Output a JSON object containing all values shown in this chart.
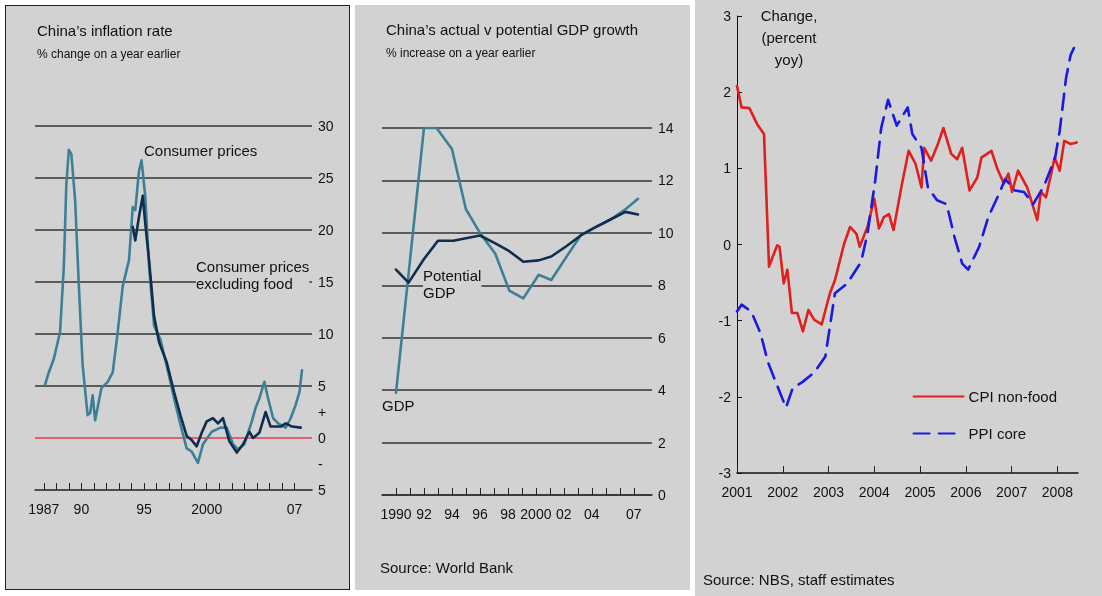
{
  "chart_data": [
    {
      "type": "line",
      "title": "China’s inflation rate",
      "subtitle": "% change on a year earlier",
      "marker": "none",
      "grid": "y",
      "legend": false,
      "xlim": [
        1986.3,
        2008.4
      ],
      "xticks": [
        {
          "value": 1987,
          "label": "1987"
        },
        {
          "value": 1988,
          "label": null
        },
        {
          "value": 1989,
          "label": null
        },
        {
          "value": 1990,
          "label": "90"
        },
        {
          "value": 1991,
          "label": null
        },
        {
          "value": 1992,
          "label": null
        },
        {
          "value": 1993,
          "label": null
        },
        {
          "value": 1994,
          "label": null
        },
        {
          "value": 1995,
          "label": "95"
        },
        {
          "value": 1996,
          "label": null
        },
        {
          "value": 1997,
          "label": null
        },
        {
          "value": 1998,
          "label": null
        },
        {
          "value": 1999,
          "label": null
        },
        {
          "value": 2000,
          "label": "2000"
        },
        {
          "value": 2001,
          "label": null
        },
        {
          "value": 2002,
          "label": null
        },
        {
          "value": 2003,
          "label": null
        },
        {
          "value": 2004,
          "label": null
        },
        {
          "value": 2005,
          "label": null
        },
        {
          "value": 2006,
          "label": null
        },
        {
          "value": 2007,
          "label": "07"
        }
      ],
      "ylim": [
        -5,
        30
      ],
      "yticks": [
        {
          "value": -5,
          "label": "5"
        },
        {
          "value": -2.5,
          "label": "-"
        },
        0,
        {
          "value": 2.5,
          "label": "+"
        },
        5,
        10,
        15,
        20,
        25,
        30
      ],
      "ref_lines": [
        {
          "axis": "y",
          "value": 0,
          "color": "#e0606e"
        }
      ],
      "annotations": [
        "Consumer prices",
        "Consumer prices\nexcluding food"
      ],
      "series": [
        {
          "color": "#3d8096",
          "x": [
            1987.1,
            1987.4,
            1987.8,
            1988.3,
            1988.6,
            1988.8,
            1989.0,
            1989.2,
            1989.5,
            1989.8,
            1990.1,
            1990.5,
            1990.7,
            1990.9,
            1991.1,
            1991.6,
            1992.1,
            1992.5,
            1992.9,
            1993.3,
            1993.8,
            1994.1,
            1994.3,
            1994.6,
            1994.8,
            1995.1,
            1995.4,
            1995.8,
            1996.3,
            1996.8,
            1997.4,
            1997.9,
            1998.4,
            1998.8,
            1999.3,
            1999.7,
            2000.4,
            2001.1,
            2001.6,
            2002.1,
            2002.5,
            2003.0,
            2003.6,
            2003.9,
            2004.2,
            2004.6,
            2004.9,
            2005.3,
            2005.7,
            2006.3,
            2006.7,
            2007.1,
            2007.4,
            2007.6
          ],
          "values": [
            5.1,
            6.3,
            7.6,
            10.2,
            16.5,
            24.4,
            27.7,
            27.3,
            22.9,
            14.6,
            7.0,
            2.2,
            2.4,
            4.1,
            1.7,
            4.8,
            5.4,
            6.3,
            10.2,
            14.6,
            17.1,
            22.2,
            21.9,
            25.7,
            26.7,
            23.2,
            16.5,
            10.8,
            9.5,
            7.0,
            3.8,
            1.3,
            -1.0,
            -1.3,
            -2.4,
            -0.6,
            0.6,
            1.0,
            1.0,
            -0.6,
            -1.1,
            -0.6,
            1.6,
            2.9,
            3.8,
            5.4,
            3.8,
            1.9,
            1.4,
            1.0,
            1.9,
            3.2,
            4.4,
            6.5
          ]
        },
        {
          "color": "#0f2d4f",
          "x": [
            1994.1,
            1994.3,
            1994.6,
            1994.9,
            1995.1,
            1995.4,
            1995.8,
            1996.2,
            1996.8,
            1997.4,
            1997.9,
            1998.4,
            1998.8,
            1999.2,
            1999.6,
            2000.0,
            2000.5,
            2000.9,
            2001.3,
            2001.8,
            2002.4,
            2002.9,
            2003.4,
            2003.7,
            2004.2,
            2004.7,
            2005.1,
            2005.9,
            2006.3,
            2006.8,
            2007.5
          ],
          "values": [
            20.3,
            19.0,
            21.3,
            23.3,
            20.6,
            17.1,
            11.7,
            9.2,
            7.3,
            4.4,
            2.2,
            0.2,
            -0.2,
            -0.8,
            0.5,
            1.6,
            1.9,
            1.4,
            1.9,
            -0.3,
            -1.4,
            -0.6,
            0.6,
            0,
            0.5,
            2.5,
            1.1,
            1.1,
            1.4,
            1.1,
            1.0
          ]
        }
      ]
    },
    {
      "type": "line",
      "title": "China’s actual v potential GDP growth",
      "subtitle": "% increase on a year earlier",
      "marker": "none",
      "grid": "y",
      "legend": false,
      "xlim": [
        1989,
        2008.3
      ],
      "xticks": [
        {
          "value": 1990,
          "label": "1990"
        },
        {
          "value": 1991,
          "label": null
        },
        {
          "value": 1992,
          "label": "92"
        },
        {
          "value": 1993,
          "label": null
        },
        {
          "value": 1994,
          "label": "94"
        },
        {
          "value": 1995,
          "label": null
        },
        {
          "value": 1996,
          "label": "96"
        },
        {
          "value": 1997,
          "label": null
        },
        {
          "value": 1998,
          "label": "98"
        },
        {
          "value": 1999,
          "label": null
        },
        {
          "value": 2000,
          "label": "2000"
        },
        {
          "value": 2001,
          "label": null
        },
        {
          "value": 2002,
          "label": "02"
        },
        {
          "value": 2003,
          "label": null
        },
        {
          "value": 2004,
          "label": "04"
        },
        {
          "value": 2005,
          "label": null
        },
        {
          "value": 2006,
          "label": null
        },
        {
          "value": 2007,
          "label": "07"
        }
      ],
      "ylim": [
        0,
        14
      ],
      "yticks": [
        0,
        2,
        4,
        6,
        8,
        10,
        12,
        14
      ],
      "annotations": [
        "Potential\nGDP",
        "GDP",
        "Source: World Bank"
      ],
      "series": [
        {
          "color": "#3d8096",
          "x": [
            1990,
            1992.0,
            1992.9,
            1994.0,
            1995.0,
            1996.0,
            1997.1,
            1998.1,
            1999.1,
            2000.2,
            2001.1,
            2002.2,
            2003.2,
            2004.2,
            2005.3,
            2006.4,
            2007.3
          ],
          "values": [
            3.9,
            14.0,
            14.0,
            13.2,
            10.9,
            10.0,
            9.2,
            7.8,
            7.5,
            8.4,
            8.2,
            9.1,
            9.9,
            10.2,
            10.5,
            10.9,
            11.3
          ]
        },
        {
          "color": "#0f2d4f",
          "x": [
            1990,
            1990.9,
            1992.0,
            1993.0,
            1994.1,
            1996.0,
            1997.1,
            1998.1,
            1999.1,
            2000.2,
            2001.1,
            2002.2,
            2003.2,
            2004.2,
            2005.3,
            2006.4,
            2007.3
          ],
          "values": [
            8.6,
            8.1,
            9.0,
            9.7,
            9.7,
            9.9,
            9.6,
            9.3,
            8.9,
            8.95,
            9.1,
            9.5,
            9.9,
            10.2,
            10.5,
            10.8,
            10.7
          ]
        }
      ]
    },
    {
      "type": "line",
      "ylabel": "Change,\n(percent\nyoy)",
      "marker": "none",
      "grid": false,
      "legend": "bottom right",
      "xlim": [
        2001,
        2008.45
      ],
      "xticks": [
        {
          "value": 2001,
          "label": "2001"
        },
        {
          "value": 2002,
          "label": "2002"
        },
        {
          "value": 2003,
          "label": "2003"
        },
        {
          "value": 2004,
          "label": "2004"
        },
        {
          "value": 2005,
          "label": "2005"
        },
        {
          "value": 2006,
          "label": "2006"
        },
        {
          "value": 2007,
          "label": "2007"
        },
        {
          "value": 2008,
          "label": "2008"
        }
      ],
      "ylim": [
        -3,
        3
      ],
      "yticks": [
        -3,
        -2,
        -1,
        0,
        1,
        2,
        3
      ],
      "annotations": [
        "Source: NBS, staff estimates"
      ],
      "series": [
        {
          "name": "CPI non-food",
          "color": "#e01f1f",
          "line_style": "solid",
          "x": [
            2001.0,
            2001.1,
            2001.27,
            2001.44,
            2001.59,
            2001.7,
            2001.78,
            2001.88,
            2001.93,
            2002.02,
            2002.1,
            2002.2,
            2002.32,
            2002.44,
            2002.56,
            2002.69,
            2002.85,
            2003.03,
            2003.14,
            2003.34,
            2003.47,
            2003.61,
            2003.68,
            2003.85,
            2004.0,
            2004.1,
            2004.21,
            2004.32,
            2004.42,
            2004.59,
            2004.75,
            2004.9,
            2005.03,
            2005.09,
            2005.24,
            2005.39,
            2005.51,
            2005.68,
            2005.81,
            2005.92,
            2006.08,
            2006.25,
            2006.34,
            2006.56,
            2006.69,
            2006.83,
            2006.93,
            2007.01,
            2007.14,
            2007.34,
            2007.56,
            2007.64,
            2007.75,
            2007.94,
            2008.05,
            2008.15,
            2008.29,
            2008.42
          ],
          "values": [
            2.08,
            1.8,
            1.79,
            1.58,
            1.45,
            -0.29,
            -0.16,
            -0.01,
            -0.03,
            -0.51,
            -0.33,
            -0.9,
            -0.9,
            -1.14,
            -0.86,
            -0.99,
            -1.05,
            -0.64,
            -0.47,
            0.01,
            0.23,
            0.14,
            -0.03,
            0.23,
            0.6,
            0.21,
            0.36,
            0.4,
            0.19,
            0.75,
            1.23,
            1.06,
            0.75,
            1.27,
            1.1,
            1.32,
            1.53,
            1.19,
            1.12,
            1.27,
            0.71,
            0.88,
            1.14,
            1.23,
            0.99,
            0.8,
            0.93,
            0.69,
            0.97,
            0.75,
            0.32,
            0.69,
            0.62,
            1.14,
            0.97,
            1.36,
            1.32,
            1.34
          ]
        },
        {
          "name": "PPI core",
          "color": "#1a1ae0",
          "line_style": "dashed",
          "x": [
            2001.0,
            2001.1,
            2001.31,
            2001.51,
            2001.68,
            2001.85,
            2002.07,
            2002.22,
            2002.42,
            2002.69,
            2002.93,
            2003.14,
            2003.41,
            2003.71,
            2003.85,
            2004.02,
            2004.15,
            2004.3,
            2004.49,
            2004.73,
            2004.83,
            2005.03,
            2005.17,
            2005.37,
            2005.58,
            2005.75,
            2005.92,
            2006.05,
            2006.29,
            2006.49,
            2006.69,
            2006.86,
            2007.07,
            2007.27,
            2007.47,
            2007.71,
            2007.95,
            2008.05,
            2008.19,
            2008.29,
            2008.36
          ],
          "values": [
            -0.88,
            -0.79,
            -0.88,
            -1.16,
            -1.55,
            -1.81,
            -2.14,
            -1.88,
            -1.81,
            -1.68,
            -1.47,
            -0.64,
            -0.51,
            -0.23,
            0.14,
            0.84,
            1.53,
            1.9,
            1.56,
            1.8,
            1.45,
            1.27,
            0.75,
            0.58,
            0.53,
            0.1,
            -0.25,
            -0.33,
            -0.03,
            0.36,
            0.62,
            0.86,
            0.71,
            0.69,
            0.53,
            0.77,
            1.14,
            1.49,
            2.19,
            2.49,
            2.58
          ]
        }
      ]
    }
  ]
}
